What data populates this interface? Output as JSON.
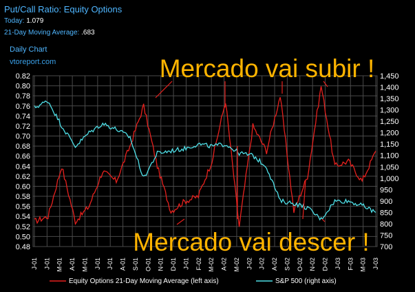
{
  "header": {
    "title": "Put/Call Ratio: Equity Options",
    "today_label": "Today:",
    "today_value": "1.079",
    "ma_label": "21-Day Moving Average:",
    "ma_value": ".683",
    "chart_period": "Daily Chart",
    "site": "vtoreport.com"
  },
  "annotations": {
    "top": "Mercado vai subir !",
    "bottom": "Mercado vai descer !"
  },
  "colors": {
    "background": "#000000",
    "plot_background": "#000000",
    "grid": "#4a4a4a",
    "pc_ratio": "#e8211e",
    "sp500": "#4fe0e8",
    "annotation": "#ffb400",
    "header_text": "#4fb6ff"
  },
  "chart_data": {
    "type": "line",
    "title": "Put/Call Ratio: Equity Options",
    "x": [
      "J-01",
      "J-01",
      "M-01",
      "A-01",
      "M-01",
      "J-01",
      "J-01",
      "A-01",
      "S-01",
      "O-01",
      "N-01",
      "D-01",
      "J-01",
      "F-02",
      "M-02",
      "A-02",
      "M-02",
      "J-02",
      "J-02",
      "A-02",
      "S-02",
      "O-02",
      "N-02",
      "D-02",
      "J-03",
      "F-03"
    ],
    "x_tick_labels": [
      "J-01",
      "J-01",
      "M-01",
      "A-01",
      "M-01",
      "J-01",
      "J-01",
      "A-01",
      "S-01",
      "O-01",
      "N-01",
      "D-01",
      "J-01",
      "F-02",
      "M-02",
      "A-02",
      "M-02",
      "J-02",
      "J-02",
      "A-02",
      "S-02",
      "O-02",
      "N-02",
      "D-02",
      "J-03",
      "F-03",
      "M-03",
      "J-03"
    ],
    "y_left_ticks": [
      "0.82",
      "0.80",
      "0.78",
      "0.76",
      "0.74",
      "0.72",
      "0.70",
      "0.68",
      "0.66",
      "0.64",
      "0.62",
      "0.60",
      "0.58",
      "0.56",
      "0.54",
      "0.52",
      "0.50",
      "0.48"
    ],
    "y_right_ticks": [
      "1,450",
      "1,400",
      "1,350",
      "1,300",
      "1,250",
      "1,200",
      "1,150",
      "1,100",
      "1,050",
      "1,000",
      "950",
      "900",
      "850",
      "800",
      "750",
      "700"
    ],
    "ylim_left": [
      0.48,
      0.82
    ],
    "ylim_right": [
      700,
      1450
    ],
    "grid": true,
    "legend_position": "bottom",
    "series": [
      {
        "name": "Equity Options 21-Day Moving Average (left axis)",
        "axis": "left",
        "color": "#e8211e",
        "values": [
          0.53,
          0.54,
          0.64,
          0.53,
          0.56,
          0.63,
          0.61,
          0.68,
          0.76,
          0.64,
          0.55,
          0.57,
          0.58,
          0.65,
          0.77,
          0.52,
          0.72,
          0.67,
          0.78,
          0.55,
          0.62,
          0.8,
          0.64,
          0.65,
          0.61,
          0.67
        ]
      },
      {
        "name": "S&P 500 (right axis)",
        "axis": "right",
        "color": "#4fe0e8",
        "values": [
          1310,
          1340,
          1230,
          1140,
          1200,
          1240,
          1215,
          1180,
          1000,
          1110,
          1120,
          1130,
          1150,
          1140,
          1150,
          1110,
          1100,
          1050,
          900,
          890,
          870,
          820,
          900,
          900,
          880,
          850
        ]
      }
    ],
    "legend": [
      "Equity Options 21-Day Moving Average (left axis)",
      "S&P 500 (right axis)"
    ]
  }
}
